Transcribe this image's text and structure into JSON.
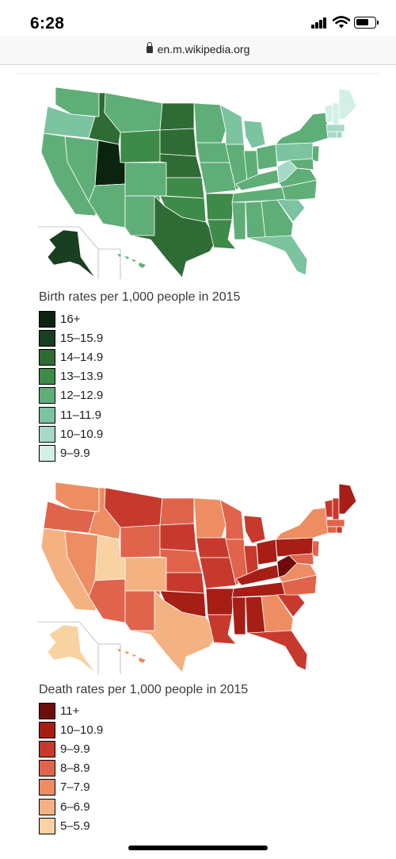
{
  "status_bar": {
    "time": "6:28"
  },
  "browser": {
    "url": "en.m.wikipedia.org"
  },
  "birth_map": {
    "colors": {
      "c16": "#0b2410",
      "c15": "#183f1f",
      "c14": "#2f6b34",
      "c13": "#3e8a49",
      "c12": "#5fae78",
      "c11": "#7cc3a0",
      "c10": "#a6d9c7",
      "c9": "#d4efe6"
    },
    "legend_title": "Birth rates per 1,000 people in 2015",
    "legend": [
      {
        "label": "16+",
        "color": "#0b2410"
      },
      {
        "label": "15–15.9",
        "color": "#183f1f"
      },
      {
        "label": "14–14.9",
        "color": "#2f6b34"
      },
      {
        "label": "13–13.9",
        "color": "#3e8a49"
      },
      {
        "label": "12–12.9",
        "color": "#5fae78"
      },
      {
        "label": "11–11.9",
        "color": "#7cc3a0"
      },
      {
        "label": "10–10.9",
        "color": "#a6d9c7"
      },
      {
        "label": "9–9.9",
        "color": "#d4efe6"
      }
    ]
  },
  "death_map": {
    "colors": {
      "c11": "#6e0b0b",
      "c10": "#a61e16",
      "c9": "#c8392d",
      "c8": "#e0634c",
      "c7": "#ee8d62",
      "c6": "#f4b282",
      "c5": "#f8d2a2"
    },
    "legend_title": "Death rates per 1,000 people in 2015",
    "legend": [
      {
        "label": "11+",
        "color": "#6e0b0b"
      },
      {
        "label": "10–10.9",
        "color": "#a61e16"
      },
      {
        "label": "9–9.9",
        "color": "#c8392d"
      },
      {
        "label": "8–8.9",
        "color": "#e0634c"
      },
      {
        "label": "7–7.9",
        "color": "#ee8d62"
      },
      {
        "label": "6–6.9",
        "color": "#f4b282"
      },
      {
        "label": "5–5.9",
        "color": "#f8d2a2"
      }
    ]
  }
}
